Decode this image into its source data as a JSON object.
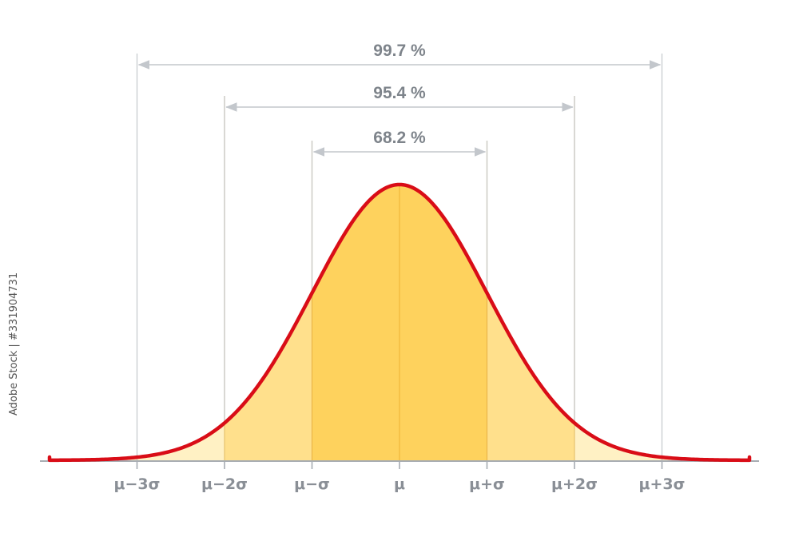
{
  "chart_data": {
    "type": "area",
    "distribution": "normal",
    "x_unit": "sigma from mean",
    "x": [
      -4,
      4
    ],
    "xlim": [
      -4,
      4
    ],
    "peak_density": 0.3989,
    "tick_values": [
      -3,
      -2,
      -1,
      0,
      1,
      2,
      3
    ],
    "tick_labels": [
      "μ−3σ",
      "μ−2σ",
      "μ−σ",
      "μ",
      "μ+σ",
      "μ+2σ",
      "μ+3σ"
    ],
    "intervals": [
      {
        "label": "68.2 %",
        "from": -1,
        "to": 1
      },
      {
        "label": "95.4 %",
        "from": -2,
        "to": 2
      },
      {
        "label": "99.7 %",
        "from": -3,
        "to": 3
      }
    ],
    "colors": {
      "curve": "#d90d17",
      "inner_fill": "#fed25d",
      "middle_fill": "#ffe08c",
      "outer_fill": "#fff1c4",
      "guide_line": "#c3c7cc",
      "axis": "#a7acb2",
      "label": "#7e848b"
    }
  },
  "watermark": {
    "text": "Adobe Stock | #331904731"
  }
}
